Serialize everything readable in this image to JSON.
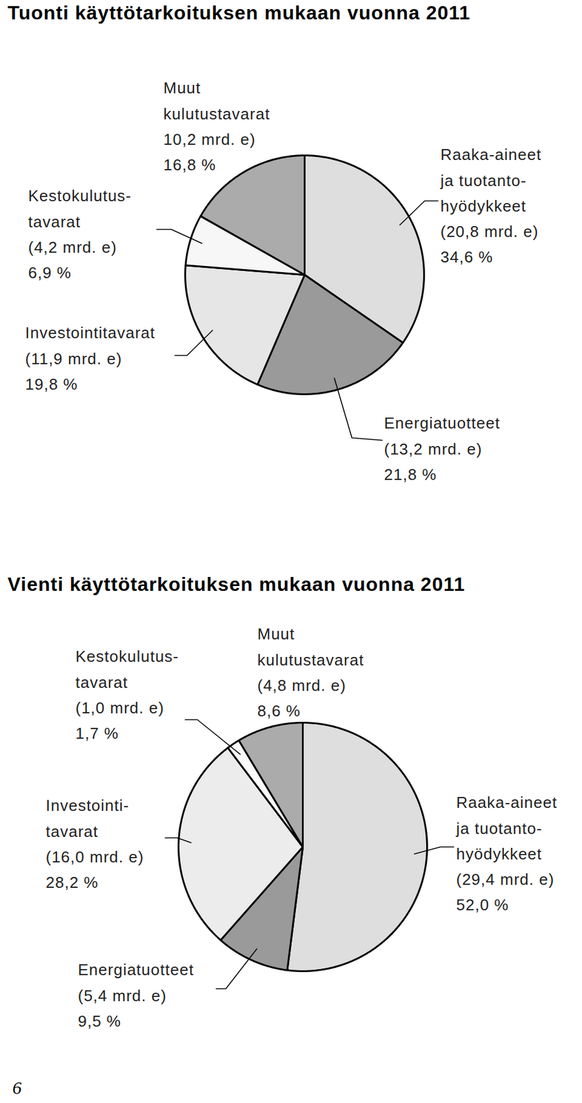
{
  "chart_data": [
    {
      "type": "pie",
      "title": "Tuonti käyttötarkoituksen mukaan vuonna 2011",
      "categories": [
        "Raaka-aineet\nja tuotanto-\nhyödykkeet",
        "Energiatuotteet",
        "Investointitavarat",
        "Kestokulutus-\ntavarat",
        "Muut\nkulutustavarat"
      ],
      "amounts": [
        20.8,
        13.2,
        11.9,
        4.2,
        10.2
      ],
      "amount_labels": [
        "(20,8 mrd. e)",
        "(13,2 mrd. e)",
        "(11,9 mrd. e)",
        "(4,2 mrd. e)",
        "10,2 mrd. e)"
      ],
      "values": [
        34.6,
        21.8,
        19.8,
        6.9,
        16.8
      ],
      "value_labels": [
        "34,6 %",
        "21,8 %",
        "19,8 %",
        "6,9 %",
        "16,8 %"
      ],
      "colors": [
        "#dedede",
        "#9a9a9a",
        "#e6e6e6",
        "#f7f7f7",
        "#ababab"
      ],
      "data_labels": true
    },
    {
      "type": "pie",
      "title": "Vienti käyttötarkoituksen mukaan vuonna 2011",
      "categories": [
        "Raaka-aineet\nja tuotanto-\nhyödykkeet",
        "Energiatuotteet",
        "Investointi-\ntavarat",
        "Kestokulutus-\ntavarat",
        "Muut\nkulutustavarat"
      ],
      "amounts": [
        29.4,
        5.4,
        16.0,
        1.0,
        4.8
      ],
      "amount_labels": [
        "(29,4 mrd. e)",
        "(5,4 mrd. e)",
        "(16,0 mrd. e)",
        "(1,0 mrd. e)",
        "(4,8 mrd. e)"
      ],
      "values": [
        52.0,
        9.5,
        28.2,
        1.7,
        8.6
      ],
      "value_labels": [
        "52,0 %",
        "9,5 %",
        "28,2 %",
        "1,7 %",
        "8,6 %"
      ],
      "colors": [
        "#dedede",
        "#9a9a9a",
        "#ececec",
        "#fafafa",
        "#ababab"
      ],
      "data_labels": true
    }
  ],
  "page_number": "6"
}
